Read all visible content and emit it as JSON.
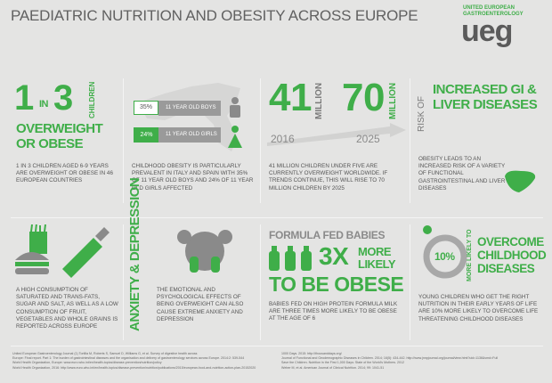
{
  "header": {
    "title": "PAEDIATRIC NUTRITION AND OBESITY ACROSS EUROPE",
    "logo_small": "UNITED EUROPEAN GASTROENTEROLOGY",
    "logo_big": "ueg"
  },
  "panel_one_in_three": {
    "one": "1",
    "in": "IN",
    "three": "3",
    "children": "CHILDREN",
    "headline": "OVERWEIGHT OR OBESE",
    "text": "1 IN 3 CHILDREN AGED 6-9 YEARS ARE OVERWEIGHT OR OBESE IN 46 EUROPEAN COUNTRIES"
  },
  "panel_italy_spain": {
    "boys_percent": "35%",
    "boys_label": "11 YEAR OLD BOYS",
    "girls_percent": "24%",
    "girls_label": "11 YEAR OLD GIRLS",
    "text": "CHILDHOOD OBESITY IS PARTICULARLY PREVALENT IN ITALY AND SPAIN WITH 35% OF 11 YEAR OLD BOYS AND 24% OF 11 YEAR OLD GIRLS AFFECTED"
  },
  "panel_millions": {
    "first_number": "41",
    "first_unit": "MILLION",
    "second_number": "70",
    "second_unit": "MILLION",
    "first_year": "2016",
    "second_year": "2025",
    "text": "41 MILLION CHILDREN UNDER FIVE ARE CURRENTLY OVERWEIGHT WORLDWIDE. IF TRENDS CONTINUE, THIS WILL RISE TO 70 MILLION CHILDREN BY 2025"
  },
  "panel_gi_liver": {
    "risk_of": "RISK OF",
    "headline": "INCREASED GI & LIVER DISEASES",
    "text": "OBESITY LEADS TO AN INCREASED RISK OF A VARIETY OF FUNCTIONAL GASTROINTESTINAL AND LIVER DISEASES"
  },
  "panel_diet": {
    "text": "A HIGH CONSUMPTION OF SATURATED AND TRANS-FATS, SUGAR AND SALT, AS WELL AS A LOW CONSUMPTION OF FRUIT, VEGETABLES AND WHOLE GRAINS IS REPORTED ACROSS EUROPE"
  },
  "panel_anxiety": {
    "headline": "ANXIETY & DEPRESSION",
    "text": "THE EMOTIONAL AND PSYCHOLOGICAL EFFECTS OF BEING OVERWEIGHT CAN ALSO CAUSE EXTREME ANXIETY AND DEPRESSION"
  },
  "panel_formula": {
    "intro": "FORMULA FED BABIES",
    "multiplier": "3X",
    "more_likely": "MORE LIKELY",
    "headline": "TO BE OBESE",
    "text": "BABIES FED ON HIGH PROTEIN FORMULA MILK ARE THREE TIMES MORE LIKELY TO BE OBESE AT THE AGE OF 6"
  },
  "panel_overcome": {
    "percent": "10%",
    "more_likely_to": "MORE LIKELY TO",
    "headline": "OVERCOME CHILDHOOD DISEASES",
    "text": "YOUNG CHILDREN WHO GET THE RIGHT NUTRITION IN THEIR EARLY YEARS OF LIFE ARE 10% MORE LIKELY TO OVERCOME LIFE THREATENING CHILDHOOD DISEASES"
  },
  "references": {
    "left": [
      "United European Gastroenterology Journal (1) Tortilla M, Roberts S, Samuel D, Williams G, et al. Survey of digestive health across",
      "Europe: Final report. Part 1: The burden of gastrointestinal diseases and the organisation and delivery of gastroenterology services across Europe. 2014:2: 539-544",
      "World Health Organization, Europe: www.euro.who.int/en/health-topics/disease-prevention/nutrition/policy",
      "World Health Organization, 2016: http://www.euro.who.int/en/health-topics/disease-prevention/nutrition/publications/2015/european-food-and-nutrition-action-plan-20152020"
    ],
    "right": [
      "1000 Days. 2015: http://thousanddays.org/",
      "Journal of Functional and Geodemographic Diseases in Children. 2014; 16(5): 434-442. http://www.jnnpjournal.org/journal/view.html?uid=1136&vmd=Full",
      "Save the Children. Nutrition in the First 1,000 Days: State of the World's Mothers. 2012",
      "Weber M, et al. American Journal of Clinical Nutrition. 2014; 99: 1041-51"
    ]
  }
}
